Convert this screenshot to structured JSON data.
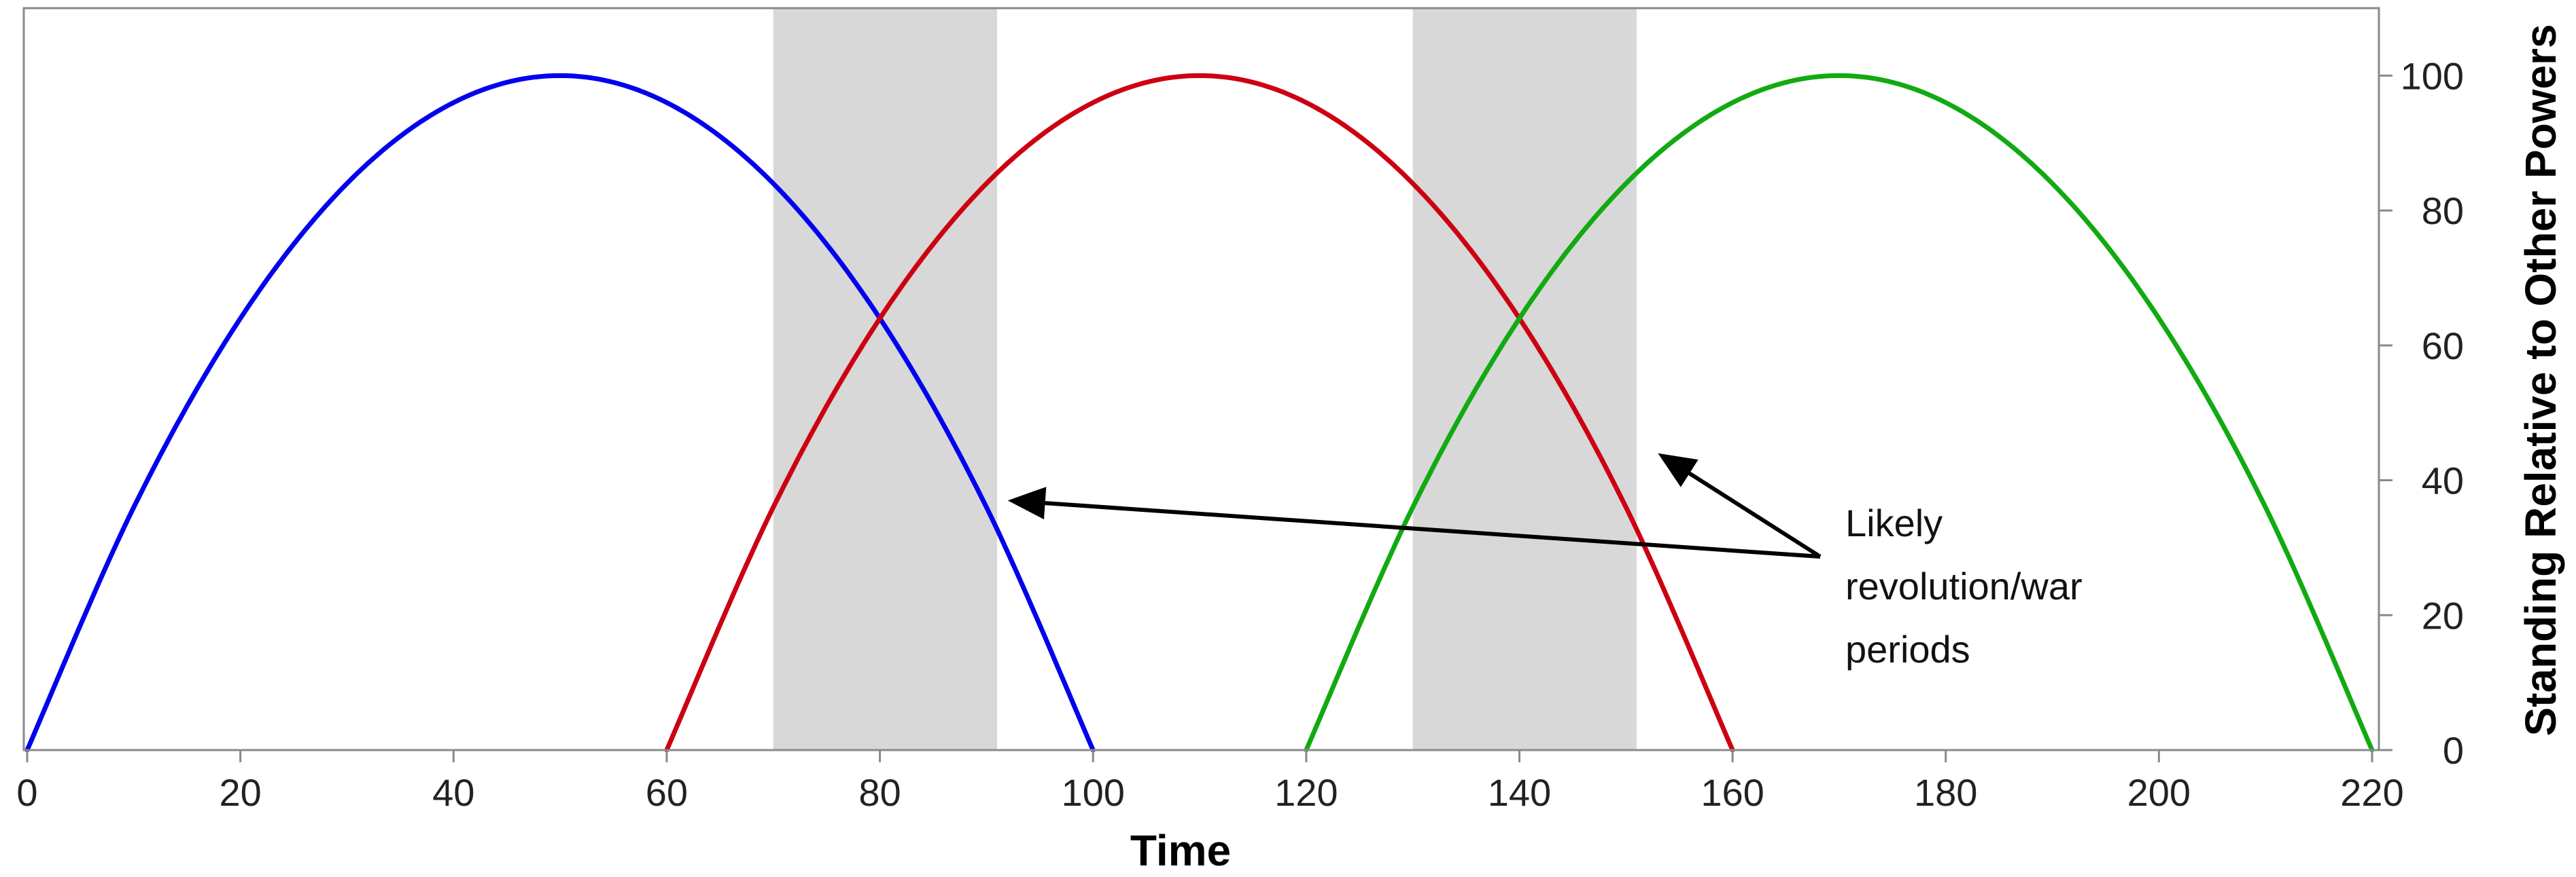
{
  "chart_data": {
    "type": "line",
    "xlabel": "Time",
    "ylabel": "Standing Relative to Other Powers",
    "xlim": [
      0,
      220
    ],
    "ylim": [
      0,
      110
    ],
    "x_ticks": [
      0,
      20,
      40,
      60,
      80,
      100,
      120,
      140,
      160,
      180,
      200,
      220
    ],
    "y_ticks": [
      0,
      20,
      40,
      60,
      80,
      100
    ],
    "y_axis_side": "right",
    "grid": false,
    "legend": "none",
    "series": [
      {
        "color": "#0000ee",
        "x": [
          0,
          10,
          20,
          30,
          40,
          50,
          60,
          70,
          80,
          90,
          100
        ],
        "y": [
          0,
          36,
          64,
          84,
          96,
          100,
          96,
          84,
          64,
          36,
          0
        ]
      },
      {
        "color": "#cc0011",
        "x": [
          60,
          70,
          80,
          90,
          100,
          110,
          120,
          130,
          140,
          150,
          160
        ],
        "y": [
          0,
          36,
          64,
          84,
          96,
          100,
          96,
          84,
          64,
          36,
          0
        ]
      },
      {
        "color": "#11aa11",
        "x": [
          120,
          130,
          140,
          150,
          160,
          170,
          180,
          190,
          200,
          210,
          220
        ],
        "y": [
          0,
          36,
          64,
          84,
          96,
          100,
          96,
          84,
          64,
          36,
          0
        ]
      }
    ],
    "shaded_regions": [
      {
        "x_start": 70,
        "x_end": 91
      },
      {
        "x_start": 130,
        "x_end": 151
      }
    ],
    "annotation": {
      "lines": [
        "Likely",
        "revolution/war",
        "periods"
      ],
      "arrow_targets": [
        {
          "x": 92,
          "y": 37
        },
        {
          "x": 153,
          "y": 44
        }
      ]
    }
  }
}
